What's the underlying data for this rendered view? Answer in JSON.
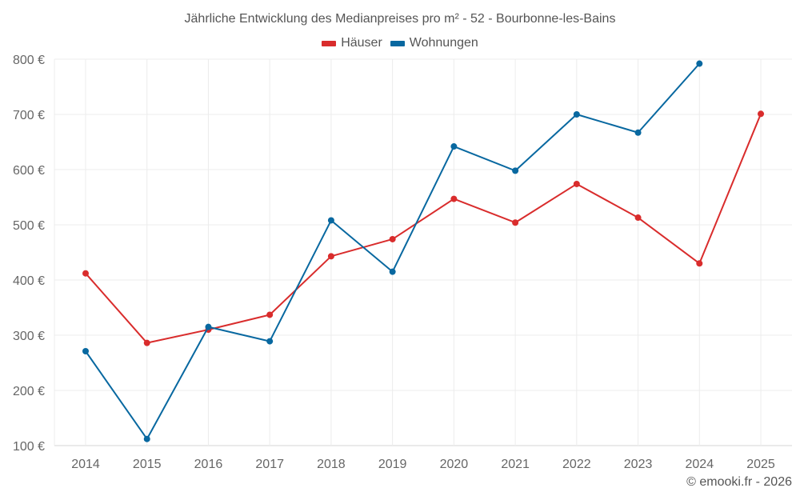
{
  "chart": {
    "title": "Jährliche Entwicklung des Medianpreises pro m² - 52 - Bourbonne-les-Bains",
    "credit": "© emooki.fr - 2026",
    "legend": [
      {
        "label": "Häuser",
        "color": "#d92c2c"
      },
      {
        "label": "Wohnungen",
        "color": "#0868a0"
      }
    ]
  },
  "chart_data": {
    "type": "line",
    "title": "Jährliche Entwicklung des Medianpreises pro m² - 52 - Bourbonne-les-Bains",
    "xlabel": "",
    "ylabel": "",
    "x": [
      2014,
      2015,
      2016,
      2017,
      2018,
      2019,
      2020,
      2021,
      2022,
      2023,
      2024,
      2025
    ],
    "series": [
      {
        "name": "Häuser",
        "color": "#d92c2c",
        "values": [
          412,
          286,
          310,
          337,
          443,
          474,
          547,
          504,
          574,
          513,
          430,
          701
        ]
      },
      {
        "name": "Wohnungen",
        "color": "#0868a0",
        "values": [
          271,
          112,
          315,
          289,
          508,
          415,
          642,
          598,
          700,
          667,
          792,
          null
        ]
      }
    ],
    "ylim": [
      100,
      800
    ],
    "yticks": [
      100,
      200,
      300,
      400,
      500,
      600,
      700,
      800
    ],
    "ytick_labels": [
      "100 €",
      "200 €",
      "300 €",
      "400 €",
      "500 €",
      "600 €",
      "700 €",
      "800 €"
    ],
    "grid": true,
    "legend_position": "top"
  }
}
